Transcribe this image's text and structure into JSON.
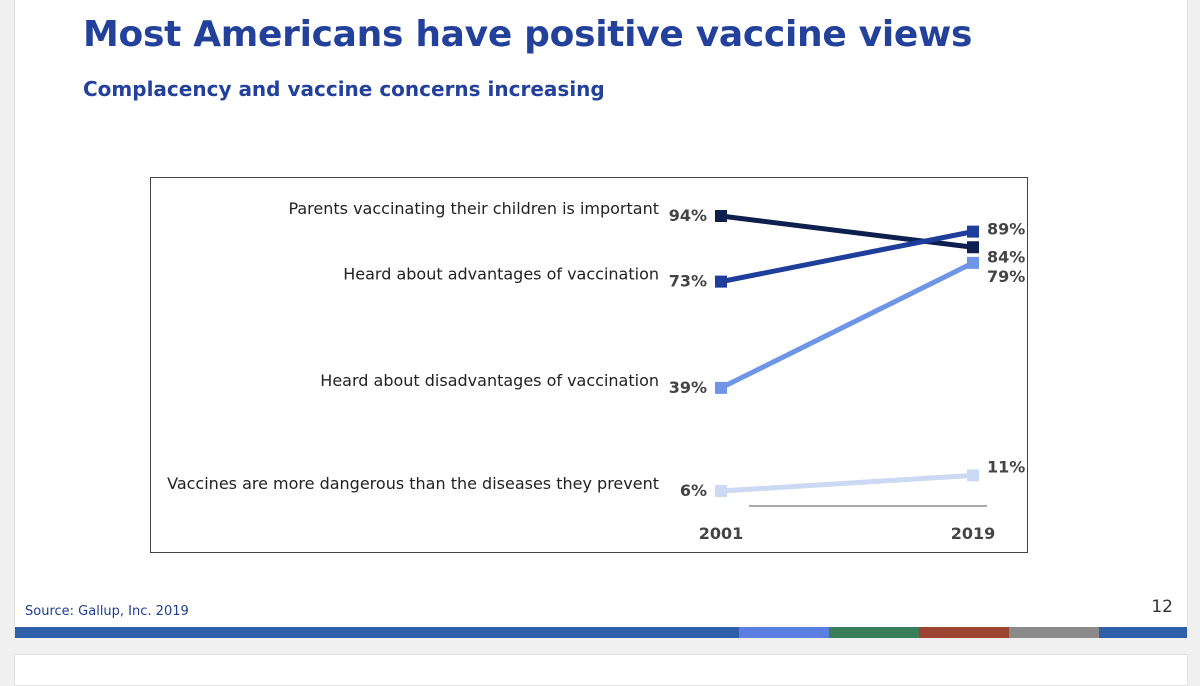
{
  "slide": {
    "title": "Most Americans have positive vaccine views",
    "subtitle": "Complacency and vaccine concerns increasing",
    "source": "Source: Gallup, Inc. 2019",
    "page_number": "12",
    "footer_colors": [
      "#2f5fa8",
      "#5b7fe0",
      "#3a7d5a",
      "#9a4431",
      "#8a8a8a",
      "#2f5fa8"
    ]
  },
  "chart_data": {
    "type": "line",
    "title": "",
    "xlabel": "",
    "ylabel": "",
    "x": [
      "2001",
      "2019"
    ],
    "ylim": [
      0,
      100
    ],
    "grid": false,
    "legend": "none",
    "series": [
      {
        "name": "Parents vaccinating their children is important",
        "values": [
          94,
          84
        ],
        "labels": [
          "94%",
          "84%"
        ],
        "color": "#0d1f4f"
      },
      {
        "name": "Heard about advantages of vaccination",
        "values": [
          73,
          89
        ],
        "labels": [
          "73%",
          "89%"
        ],
        "color": "#1f3e9c"
      },
      {
        "name": "Heard about disadvantages of vaccination",
        "values": [
          39,
          79
        ],
        "labels": [
          "39%",
          "79%"
        ],
        "color": "#6f95e6"
      },
      {
        "name": "Vaccines are more dangerous than the diseases they prevent",
        "values": [
          6,
          11
        ],
        "labels": [
          "6%",
          "11%"
        ],
        "color": "#cbd9f4"
      }
    ]
  }
}
